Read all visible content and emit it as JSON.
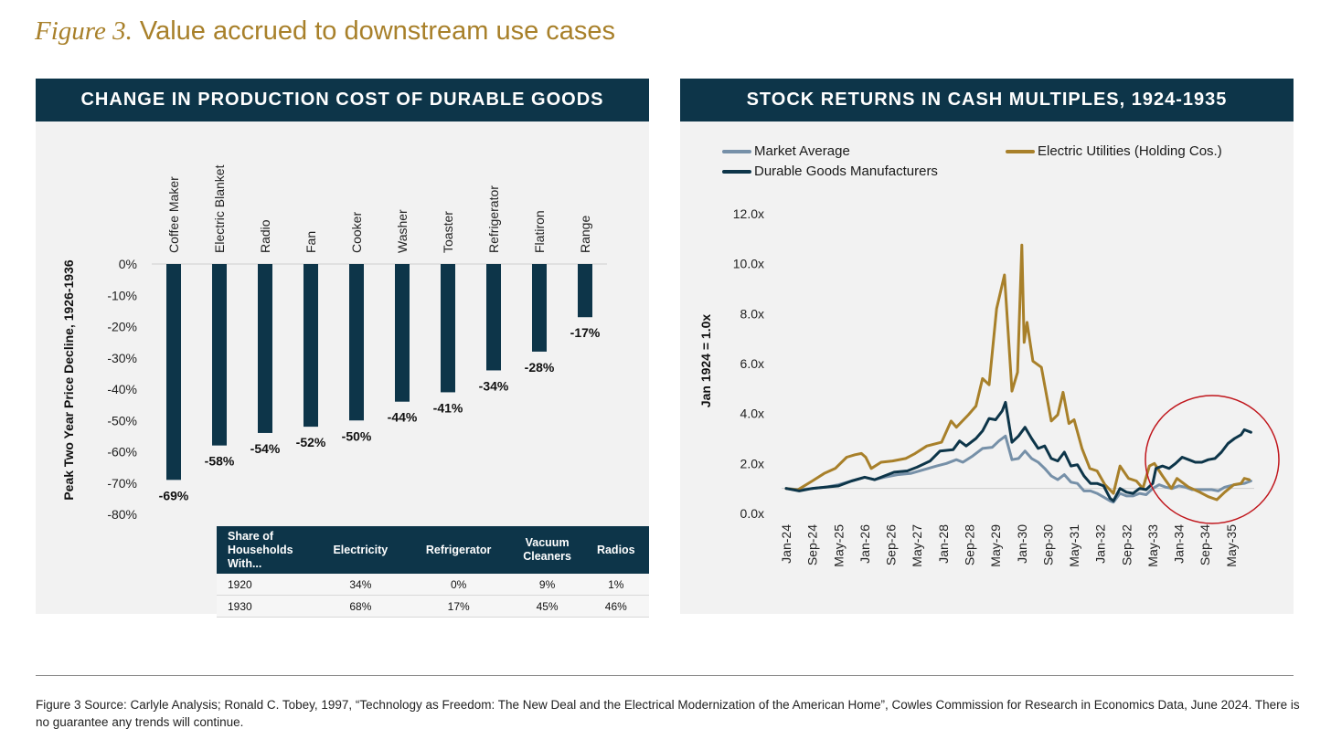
{
  "figure": {
    "number": "Figure 3.",
    "title": "Value accrued to downstream use cases"
  },
  "colors": {
    "header_bg": "#0d3549",
    "bar": "#0d3549",
    "gold": "#a8802a",
    "market": "#7690a8",
    "durable": "#0d3549",
    "circle": "#c0161c"
  },
  "chart_data": [
    {
      "type": "bar",
      "title": "CHANGE IN PRODUCTION COST OF DURABLE GOODS",
      "ylabel": "Peak Two Year Price Decline, 1926-1936",
      "xlabel": "",
      "ylim": [
        -80,
        0
      ],
      "yticks": [
        "0%",
        "-10%",
        "-20%",
        "-30%",
        "-40%",
        "-50%",
        "-60%",
        "-70%",
        "-80%"
      ],
      "categories": [
        "Coffee Maker",
        "Electric Blanket",
        "Radio",
        "Fan",
        "Cooker",
        "Washer",
        "Toaster",
        "Refrigerator",
        "Flatiron",
        "Range"
      ],
      "values": [
        -69,
        -58,
        -54,
        -52,
        -50,
        -44,
        -41,
        -34,
        -28,
        -17
      ],
      "data_labels": [
        "-69%",
        "-58%",
        "-54%",
        "-52%",
        "-50%",
        "-44%",
        "-41%",
        "-34%",
        "-28%",
        "-17%"
      ],
      "grid": false
    },
    {
      "type": "line",
      "title": "STOCK RETURNS IN CASH MULTIPLES, 1924-1935",
      "ylabel": "Jan 1924 = 1.0x",
      "xlabel": "",
      "x_units": "months since Jan 1924",
      "ylim": [
        0,
        12
      ],
      "yticks": [
        "0.0x",
        "2.0x",
        "4.0x",
        "6.0x",
        "8.0x",
        "10.0x",
        "12.0x"
      ],
      "xticks": [
        "Jan-24",
        "Sep-24",
        "May-25",
        "Jan-26",
        "Sep-26",
        "May-27",
        "Jan-28",
        "Sep-28",
        "May-29",
        "Jan-30",
        "Sep-30",
        "May-31",
        "Jan-32",
        "Sep-32",
        "May-33",
        "Jan-34",
        "Sep-34",
        "May-35"
      ],
      "reference_line": 1.0,
      "legend_position": "top",
      "annotation": "red circle highlighting 1933-1935",
      "series": [
        {
          "name": "Market Average",
          "color": "#7690a8",
          "points": [
            [
              0,
              1.0
            ],
            [
              4,
              0.95
            ],
            [
              8,
              1.0
            ],
            [
              12,
              1.05
            ],
            [
              16,
              1.15
            ],
            [
              20,
              1.3
            ],
            [
              24,
              1.45
            ],
            [
              27,
              1.35
            ],
            [
              30,
              1.45
            ],
            [
              34,
              1.55
            ],
            [
              38,
              1.6
            ],
            [
              42,
              1.75
            ],
            [
              46,
              1.9
            ],
            [
              49,
              2.0
            ],
            [
              52,
              2.15
            ],
            [
              54,
              2.05
            ],
            [
              57,
              2.3
            ],
            [
              60,
              2.6
            ],
            [
              63,
              2.65
            ],
            [
              65,
              2.9
            ],
            [
              67,
              3.1
            ],
            [
              69,
              2.15
            ],
            [
              71,
              2.2
            ],
            [
              73,
              2.5
            ],
            [
              75,
              2.2
            ],
            [
              77,
              2.05
            ],
            [
              79,
              1.8
            ],
            [
              81,
              1.5
            ],
            [
              83,
              1.35
            ],
            [
              85,
              1.55
            ],
            [
              87,
              1.25
            ],
            [
              89,
              1.2
            ],
            [
              91,
              0.9
            ],
            [
              93,
              0.9
            ],
            [
              95,
              0.8
            ],
            [
              97,
              0.65
            ],
            [
              99,
              0.5
            ],
            [
              100,
              0.45
            ],
            [
              102,
              0.8
            ],
            [
              104,
              0.7
            ],
            [
              106,
              0.7
            ],
            [
              108,
              0.8
            ],
            [
              110,
              0.75
            ],
            [
              112,
              1.0
            ],
            [
              114,
              1.15
            ],
            [
              116,
              1.05
            ],
            [
              118,
              1.0
            ],
            [
              120,
              1.1
            ],
            [
              122,
              1.05
            ],
            [
              124,
              0.95
            ],
            [
              126,
              0.95
            ],
            [
              128,
              0.95
            ],
            [
              130,
              0.95
            ],
            [
              132,
              0.9
            ],
            [
              134,
              1.05
            ],
            [
              137,
              1.15
            ],
            [
              140,
              1.2
            ],
            [
              142,
              1.3
            ]
          ]
        },
        {
          "name": "Electric Utilities (Holding Cos.)",
          "color": "#a8802a",
          "points": [
            [
              0,
              1.0
            ],
            [
              3.5,
              0.94
            ],
            [
              8,
              1.3
            ],
            [
              11.6,
              1.6
            ],
            [
              15,
              1.8
            ],
            [
              18.5,
              2.25
            ],
            [
              21,
              2.35
            ],
            [
              23,
              2.4
            ],
            [
              24.3,
              2.25
            ],
            [
              26,
              1.8
            ],
            [
              29,
              2.05
            ],
            [
              32.5,
              2.1
            ],
            [
              36.5,
              2.2
            ],
            [
              39.4,
              2.4
            ],
            [
              43,
              2.7
            ],
            [
              47.5,
              2.85
            ],
            [
              50.4,
              3.7
            ],
            [
              52,
              3.45
            ],
            [
              55.7,
              3.95
            ],
            [
              58,
              4.3
            ],
            [
              60,
              5.4
            ],
            [
              62,
              5.15
            ],
            [
              64.3,
              8.2
            ],
            [
              66.7,
              9.55
            ],
            [
              69,
              4.9
            ],
            [
              70.7,
              5.65
            ],
            [
              72,
              10.75
            ],
            [
              72.7,
              6.85
            ],
            [
              73.6,
              7.65
            ],
            [
              75.4,
              6.1
            ],
            [
              78,
              5.85
            ],
            [
              81,
              3.7
            ],
            [
              83,
              3.95
            ],
            [
              84.6,
              4.85
            ],
            [
              86.4,
              3.6
            ],
            [
              88,
              3.75
            ],
            [
              90.4,
              2.6
            ],
            [
              92.8,
              1.8
            ],
            [
              95,
              1.7
            ],
            [
              97.4,
              1.15
            ],
            [
              100,
              0.8
            ],
            [
              102,
              1.9
            ],
            [
              104.6,
              1.4
            ],
            [
              107,
              1.3
            ],
            [
              109,
              1.0
            ],
            [
              111,
              1.9
            ],
            [
              112.5,
              2.0
            ],
            [
              115,
              1.5
            ],
            [
              117.7,
              1.0
            ],
            [
              119.4,
              1.4
            ],
            [
              123,
              1.05
            ],
            [
              126.4,
              0.85
            ],
            [
              129,
              0.67
            ],
            [
              131.6,
              0.55
            ],
            [
              134,
              0.85
            ],
            [
              136.8,
              1.15
            ],
            [
              139,
              1.2
            ],
            [
              140,
              1.4
            ],
            [
              141.5,
              1.35
            ]
          ]
        },
        {
          "name": "Durable Goods Manufacturers",
          "color": "#0d3549",
          "points": [
            [
              0,
              1.0
            ],
            [
              4,
              0.9
            ],
            [
              8,
              1.0
            ],
            [
              12,
              1.05
            ],
            [
              16,
              1.1
            ],
            [
              20,
              1.3
            ],
            [
              24,
              1.45
            ],
            [
              27,
              1.35
            ],
            [
              30,
              1.5
            ],
            [
              33,
              1.65
            ],
            [
              37,
              1.7
            ],
            [
              40,
              1.85
            ],
            [
              44,
              2.1
            ],
            [
              47,
              2.5
            ],
            [
              51,
              2.55
            ],
            [
              53,
              2.9
            ],
            [
              55,
              2.7
            ],
            [
              58,
              3.0
            ],
            [
              60,
              3.3
            ],
            [
              62,
              3.8
            ],
            [
              64,
              3.75
            ],
            [
              66,
              4.1
            ],
            [
              67,
              4.45
            ],
            [
              69,
              2.85
            ],
            [
              71,
              3.1
            ],
            [
              73,
              3.45
            ],
            [
              75,
              3.0
            ],
            [
              77,
              2.6
            ],
            [
              79,
              2.7
            ],
            [
              81,
              2.2
            ],
            [
              83,
              2.1
            ],
            [
              85,
              2.45
            ],
            [
              87,
              1.9
            ],
            [
              89,
              1.95
            ],
            [
              91,
              1.5
            ],
            [
              93,
              1.2
            ],
            [
              95,
              1.2
            ],
            [
              97,
              1.1
            ],
            [
              99,
              0.6
            ],
            [
              100,
              0.5
            ],
            [
              102,
              1.0
            ],
            [
              104,
              0.85
            ],
            [
              106,
              0.8
            ],
            [
              108,
              1.0
            ],
            [
              110,
              0.95
            ],
            [
              112,
              1.2
            ],
            [
              113,
              1.8
            ],
            [
              115,
              1.9
            ],
            [
              117,
              1.8
            ],
            [
              119,
              2.0
            ],
            [
              121,
              2.25
            ],
            [
              123,
              2.15
            ],
            [
              125,
              2.05
            ],
            [
              127,
              2.05
            ],
            [
              129,
              2.15
            ],
            [
              131,
              2.2
            ],
            [
              133,
              2.45
            ],
            [
              135,
              2.8
            ],
            [
              137,
              3.0
            ],
            [
              139,
              3.15
            ],
            [
              140,
              3.35
            ],
            [
              142,
              3.25
            ]
          ]
        }
      ]
    }
  ],
  "table": {
    "headers": [
      "Share of Households With...",
      "Electricity",
      "Refrigerator",
      "Vacuum Cleaners",
      "Radios"
    ],
    "rows": [
      [
        "1920",
        "34%",
        "0%",
        "9%",
        "1%"
      ],
      [
        "1930",
        "68%",
        "17%",
        "45%",
        "46%"
      ]
    ]
  },
  "source": "Figure 3 Source: Carlyle Analysis; Ronald C. Tobey, 1997, “Technology as Freedom: The New Deal and the Electrical Modernization of the American Home”, Cowles Commission for Research in Economics Data, June 2024. There is no guarantee any trends will continue."
}
